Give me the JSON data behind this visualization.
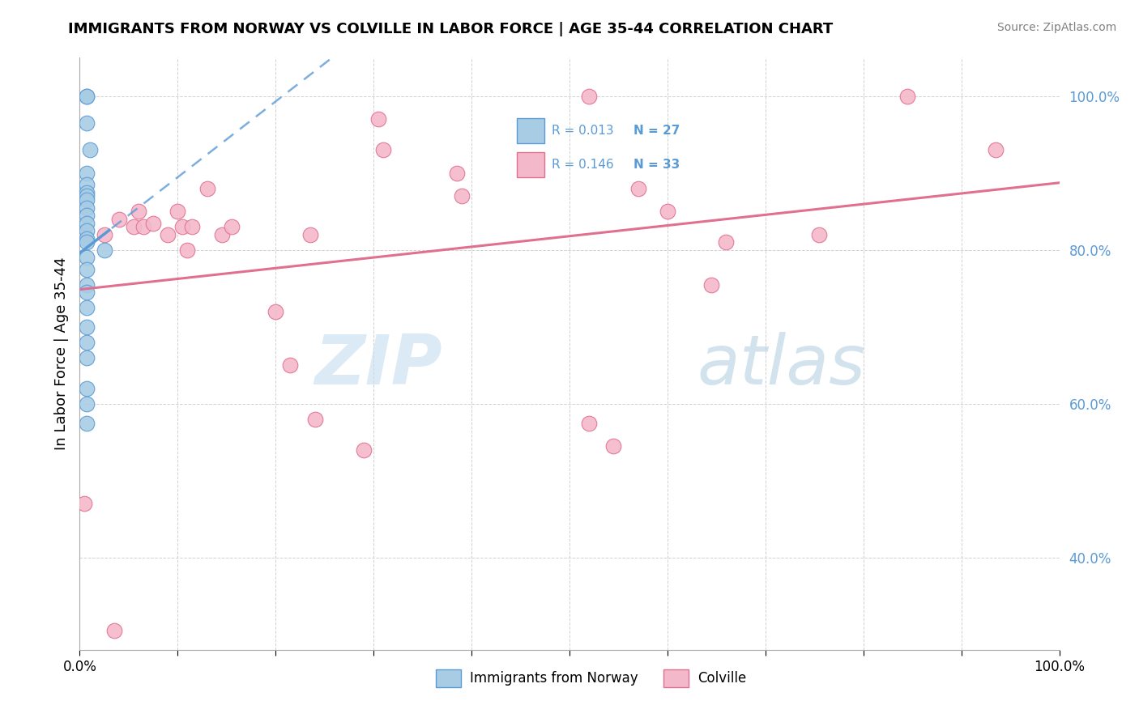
{
  "title": "IMMIGRANTS FROM NORWAY VS COLVILLE IN LABOR FORCE | AGE 35-44 CORRELATION CHART",
  "source": "Source: ZipAtlas.com",
  "ylabel": "In Labor Force | Age 35-44",
  "xlim": [
    0.0,
    1.0
  ],
  "ylim": [
    0.28,
    1.05
  ],
  "yticks": [
    0.4,
    0.6,
    0.8,
    1.0
  ],
  "ytick_labels": [
    "40.0%",
    "60.0%",
    "80.0%",
    "100.0%"
  ],
  "norway_color": "#a8cce4",
  "colville_color": "#f4b8cb",
  "norway_edge": "#5b9bd5",
  "colville_edge": "#e07090",
  "norway_line_color": "#5b9bd5",
  "colville_line_color": "#e07090",
  "legend_norway_R": "0.013",
  "legend_norway_N": "27",
  "legend_colville_R": "0.146",
  "legend_colville_N": "33",
  "watermark_zip": "ZIP",
  "watermark_atlas": "atlas",
  "norway_x": [
    0.007,
    0.007,
    0.007,
    0.01,
    0.007,
    0.007,
    0.007,
    0.007,
    0.007,
    0.007,
    0.007,
    0.007,
    0.007,
    0.007,
    0.007,
    0.025,
    0.007,
    0.007,
    0.007,
    0.007,
    0.007,
    0.007,
    0.007,
    0.007,
    0.007,
    0.007,
    0.007
  ],
  "norway_y": [
    1.0,
    1.0,
    0.965,
    0.93,
    0.9,
    0.885,
    0.875,
    0.87,
    0.865,
    0.855,
    0.845,
    0.835,
    0.825,
    0.815,
    0.81,
    0.8,
    0.79,
    0.775,
    0.755,
    0.745,
    0.725,
    0.7,
    0.68,
    0.66,
    0.62,
    0.6,
    0.575
  ],
  "colville_x": [
    0.005,
    0.005,
    0.025,
    0.04,
    0.055,
    0.06,
    0.065,
    0.075,
    0.09,
    0.1,
    0.105,
    0.11,
    0.115,
    0.13,
    0.145,
    0.155,
    0.2,
    0.215,
    0.235,
    0.24,
    0.29,
    0.305,
    0.31,
    0.385,
    0.39,
    0.52,
    0.57,
    0.6,
    0.645,
    0.66,
    0.755,
    0.845,
    0.935
  ],
  "colville_y": [
    0.47,
    0.82,
    0.82,
    0.84,
    0.83,
    0.85,
    0.83,
    0.835,
    0.82,
    0.85,
    0.83,
    0.8,
    0.83,
    0.88,
    0.82,
    0.83,
    0.72,
    0.65,
    0.82,
    0.58,
    0.54,
    0.97,
    0.93,
    0.9,
    0.87,
    1.0,
    0.88,
    0.85,
    0.755,
    0.81,
    0.82,
    1.0,
    0.93
  ],
  "colville_low_x": [
    0.035
  ],
  "colville_low_y": [
    0.305
  ],
  "colville_low2_x": [
    0.52
  ],
  "colville_low2_y": [
    0.575
  ],
  "colville_low3_x": [
    0.545
  ],
  "colville_low3_y": [
    0.545
  ]
}
